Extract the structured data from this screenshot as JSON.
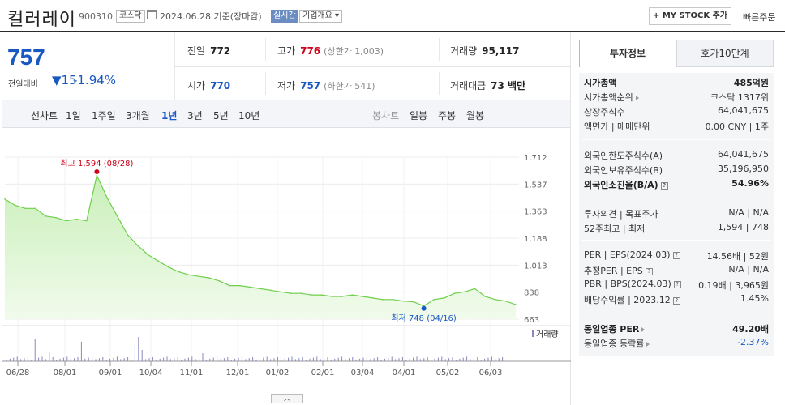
{
  "header": {
    "name": "컬러레이",
    "code": "900310",
    "market": "코스닥",
    "date": "2024.06.28 기준(장마감)",
    "realtime": "실시간",
    "company_info": "기업개요",
    "mystock_button": "+ MY STOCK 추가",
    "quick_order": "빠른주문"
  },
  "quote": {
    "price": "757",
    "change_label": "전일대비",
    "change_value": "▼15",
    "change_pct": "-1.94%",
    "prev_label": "전일",
    "prev_value": "772",
    "high_label": "고가",
    "high_value": "776",
    "high_sub": "(상한가 1,003)",
    "volume_label": "거래량",
    "volume_value": "95,117",
    "open_label": "시가",
    "open_value": "770",
    "low_label": "저가",
    "low_value": "757",
    "low_sub": "(하한가 541)",
    "amount_label": "거래대금",
    "amount_value": "73 백만"
  },
  "periods": {
    "line_label": "선차트",
    "line_items": [
      "1일",
      "1주일",
      "3개월",
      "1년",
      "3년",
      "5년",
      "10년"
    ],
    "selected": "1년",
    "candle_label": "봉차트",
    "candle_items": [
      "일봉",
      "주봉",
      "월봉"
    ]
  },
  "tabs": {
    "invest": "투자정보",
    "orderbook": "호가10단계"
  },
  "invest": {
    "g1": [
      {
        "k": "시가총액",
        "v": "485억원"
      },
      {
        "k": "시가총액순위",
        "v": "코스닥 1317위"
      },
      {
        "k": "상장주식수",
        "v": "64,041,675"
      },
      {
        "k": "액면가 | 매매단위",
        "v": "0.00 CNY | 1주"
      }
    ],
    "g2": [
      {
        "k": "외국인한도주식수(A)",
        "v": "64,041,675"
      },
      {
        "k": "외국인보유주식수(B)",
        "v": "35,196,950"
      },
      {
        "k": "외국인소진율(B/A)",
        "v": "54.96%"
      }
    ],
    "g3": [
      {
        "k": "투자의견 | 목표주가",
        "v": "N/A | N/A"
      },
      {
        "k": "52주최고 | 최저",
        "v": "1,594 | 748"
      }
    ],
    "g4": [
      {
        "k": "PER | EPS(2024.03)",
        "v": "14.56배 | 52원"
      },
      {
        "k": "추정PER | EPS",
        "v": "N/A | N/A"
      },
      {
        "k": "PBR | BPS(2024.03)",
        "v": "0.19배 | 3,965원"
      },
      {
        "k": "배당수익률 | 2023.12",
        "v": "1.45%"
      }
    ],
    "g5": [
      {
        "k": "동일업종 PER",
        "v": "49.20배"
      },
      {
        "k": "동일업종 등락률",
        "v": "-2.37%"
      }
    ]
  },
  "chart_data": {
    "type": "area",
    "y_ticks": [
      "1,712",
      "1,537",
      "1,363",
      "1,188",
      "1,013",
      "838",
      "663"
    ],
    "ylim": [
      663,
      1712
    ],
    "x_ticks": [
      "06/28",
      "08/01",
      "09/01",
      "10/04",
      "11/01",
      "12/01",
      "01/02",
      "02/01",
      "03/04",
      "04/01",
      "05/02",
      "06/03"
    ],
    "max_label": "최고 1,594 (08/28)",
    "min_label": "최저 748 (04/16)",
    "volume_legend": "거래량",
    "grid": true,
    "series": [
      {
        "x": [
          "06/28",
          "07/05",
          "07/12",
          "07/19",
          "07/26",
          "08/01",
          "08/07",
          "08/14",
          "08/21",
          "08/28",
          "09/01",
          "09/08",
          "09/15",
          "09/22",
          "09/29",
          "10/04",
          "10/11",
          "10/18",
          "10/25",
          "11/01",
          "11/08",
          "11/15",
          "11/22",
          "12/01",
          "12/08",
          "12/15",
          "12/22",
          "01/02",
          "01/09",
          "01/16",
          "01/23",
          "02/01",
          "02/08",
          "02/15",
          "02/22",
          "03/04",
          "03/11",
          "03/18",
          "03/25",
          "04/01",
          "04/08",
          "04/16",
          "04/23",
          "05/02",
          "05/09",
          "05/16",
          "05/23",
          "06/03",
          "06/10",
          "06/17",
          "06/28"
        ],
        "values": [
          1440,
          1400,
          1380,
          1380,
          1330,
          1320,
          1300,
          1310,
          1300,
          1594,
          1450,
          1330,
          1210,
          1140,
          1080,
          1040,
          1000,
          970,
          950,
          940,
          930,
          910,
          880,
          880,
          870,
          860,
          850,
          840,
          830,
          830,
          820,
          820,
          810,
          810,
          820,
          810,
          800,
          790,
          790,
          780,
          775,
          748,
          790,
          800,
          830,
          840,
          860,
          810,
          790,
          780,
          757
        ]
      }
    ]
  }
}
